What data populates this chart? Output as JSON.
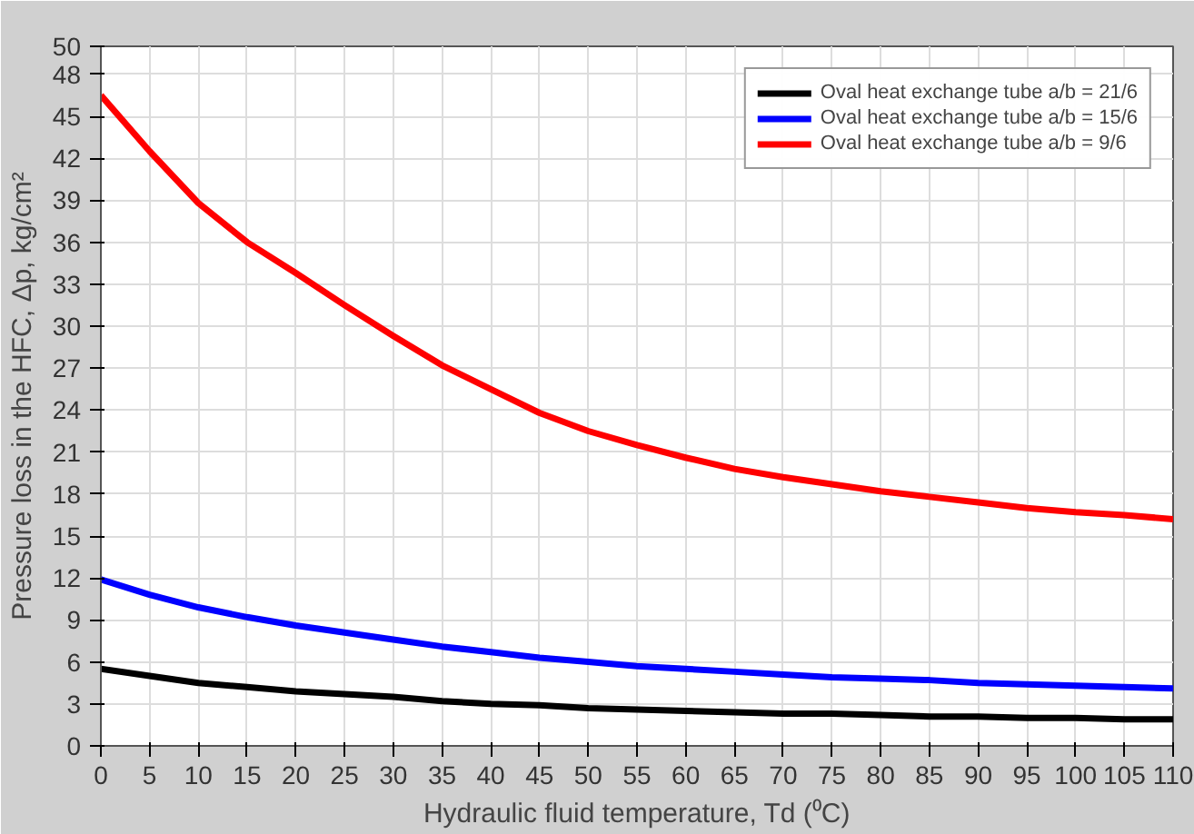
{
  "chart_data": {
    "type": "line",
    "xlabel": "Hydraulic fluid temperature, Td (⁰C)",
    "ylabel": "Pressure loss in the HFC, Δp, kg/cm²",
    "x": [
      0,
      5,
      10,
      15,
      20,
      25,
      30,
      35,
      40,
      45,
      50,
      55,
      60,
      65,
      70,
      75,
      80,
      85,
      90,
      95,
      100,
      105,
      110
    ],
    "series": [
      {
        "name": "Oval heat exchange tube a/b = 21/6",
        "color": "#000000",
        "values": [
          5.5,
          5.0,
          4.5,
          4.2,
          3.9,
          3.7,
          3.5,
          3.2,
          3.0,
          2.9,
          2.7,
          2.6,
          2.5,
          2.4,
          2.3,
          2.3,
          2.2,
          2.1,
          2.1,
          2.0,
          2.0,
          1.9,
          1.9
        ]
      },
      {
        "name": "Oval heat exchange tube a/b = 15/6",
        "color": "#0000ff",
        "values": [
          11.9,
          10.8,
          9.9,
          9.2,
          8.6,
          8.1,
          7.6,
          7.1,
          6.7,
          6.3,
          6.0,
          5.7,
          5.5,
          5.3,
          5.1,
          4.9,
          4.8,
          4.7,
          4.5,
          4.4,
          4.3,
          4.2,
          4.1
        ]
      },
      {
        "name": "Oval heat exchange tube a/b = 9/6",
        "color": "#ff0000",
        "values": [
          46.5,
          42.5,
          38.8,
          36.0,
          33.8,
          31.5,
          29.3,
          27.2,
          25.5,
          23.8,
          22.5,
          21.5,
          20.6,
          19.8,
          19.2,
          18.7,
          18.2,
          17.8,
          17.4,
          17.0,
          16.7,
          16.5,
          16.2
        ]
      }
    ],
    "xlim": [
      0,
      110
    ],
    "ylim": [
      0,
      50
    ],
    "xticks": [
      0,
      5,
      10,
      15,
      20,
      25,
      30,
      35,
      40,
      45,
      50,
      55,
      60,
      65,
      70,
      75,
      80,
      85,
      90,
      95,
      100,
      105,
      110
    ],
    "yticks": [
      0,
      3,
      6,
      9,
      12,
      15,
      18,
      21,
      24,
      27,
      30,
      33,
      36,
      39,
      42,
      45,
      48,
      50
    ],
    "grid": true,
    "legend": "top right",
    "line_style": "solid",
    "marker": "none"
  }
}
